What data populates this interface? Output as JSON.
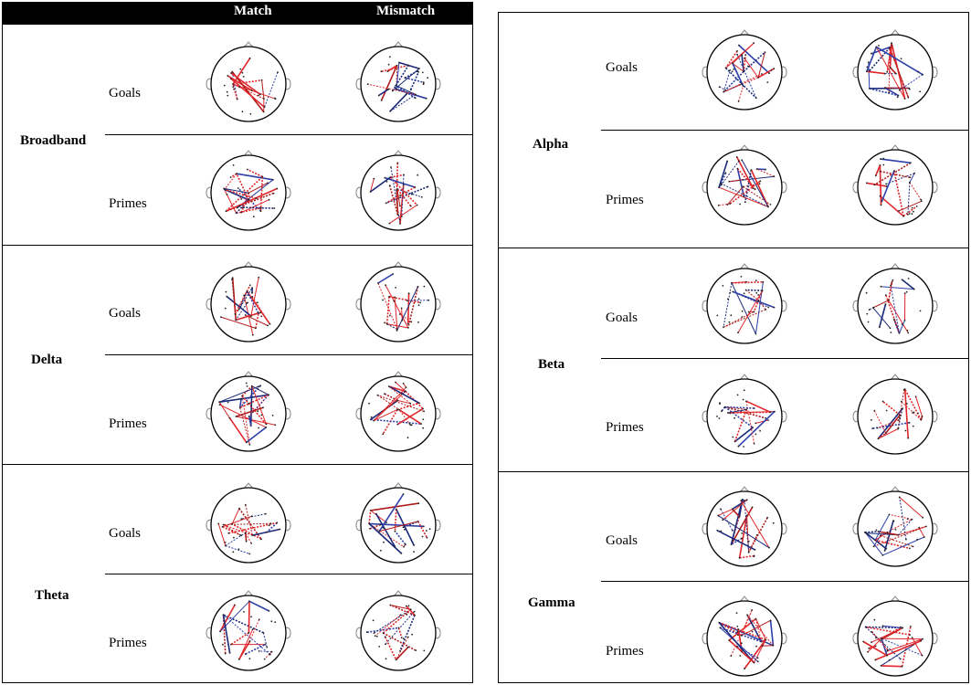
{
  "header": {
    "col1": "Match",
    "col2": "Mismatch"
  },
  "conditions": {
    "goals": "Goals",
    "primes": "Primes"
  },
  "left_bands": [
    {
      "name": "Broadband"
    },
    {
      "name": "Delta"
    },
    {
      "name": "Theta"
    }
  ],
  "right_bands": [
    {
      "name": "Alpha"
    },
    {
      "name": "Beta"
    },
    {
      "name": "Gamma"
    }
  ],
  "colors": {
    "red": "#e0262a",
    "darkred": "#b01c1c",
    "blue": "#2c3fa8",
    "darkblue": "#1b2a7a"
  }
}
